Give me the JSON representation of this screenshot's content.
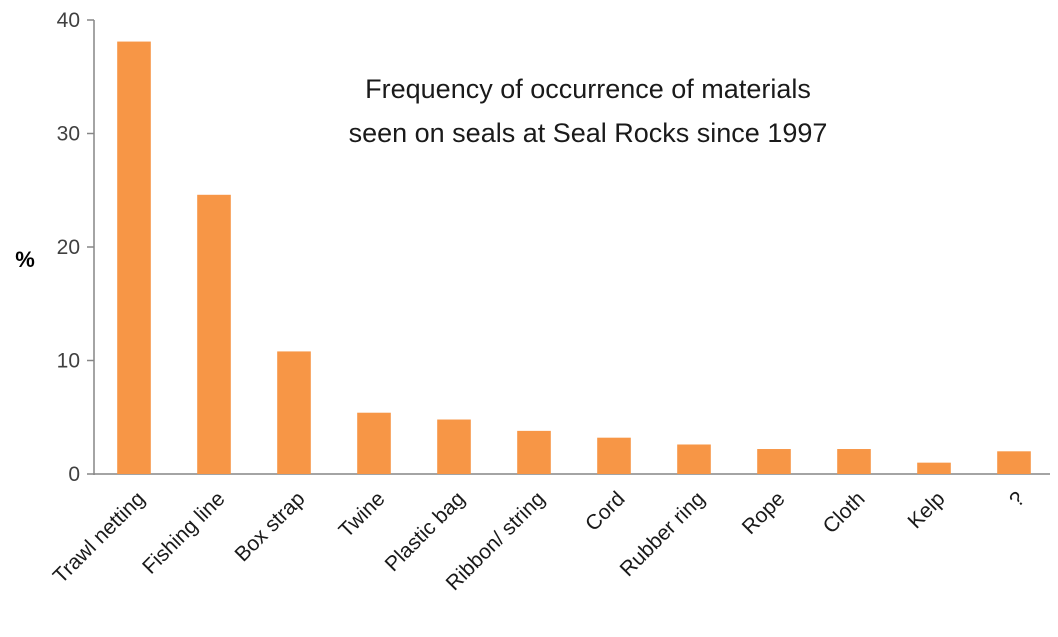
{
  "chart_data": {
    "type": "bar",
    "title_lines": [
      "Frequency of occurrence of materials",
      "seen on seals at Seal Rocks since 1997"
    ],
    "ylabel": "%",
    "xlabel": "",
    "ylim": [
      0,
      40
    ],
    "yticks": [
      "0",
      "10",
      "20",
      "30",
      "40"
    ],
    "categories": [
      "Trawl netting",
      "Fishing line",
      "Box strap",
      "Twine",
      "Plastic bag",
      "Ribbon/ string",
      "Cord",
      "Rubber ring",
      "Rope",
      "Cloth",
      "Kelp",
      "?"
    ],
    "values": [
      38.1,
      24.6,
      10.8,
      5.4,
      4.8,
      3.8,
      3.2,
      2.6,
      2.2,
      2.2,
      1.0,
      2.0
    ],
    "bar_color": "#F79646",
    "grid": false,
    "legend": "none"
  }
}
